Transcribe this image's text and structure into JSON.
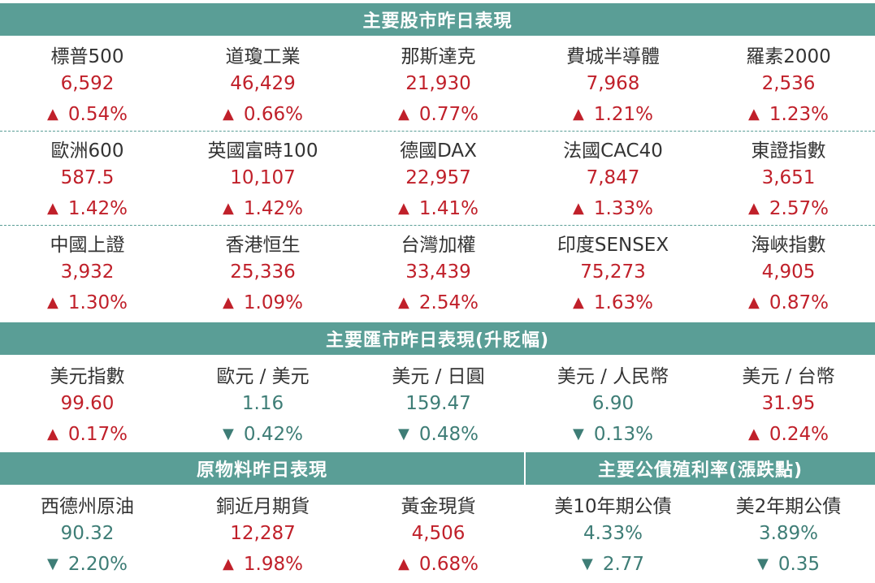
{
  "colors": {
    "banner": "#5a9e96",
    "up": "#c0202a",
    "down": "#3e7d76"
  },
  "stocks": {
    "title": "主要股市昨日表現",
    "rows": [
      [
        {
          "name": "標普500",
          "value": "6,592",
          "change": "0.54%",
          "dir": "up"
        },
        {
          "name": "道瓊工業",
          "value": "46,429",
          "change": "0.66%",
          "dir": "up"
        },
        {
          "name": "那斯達克",
          "value": "21,930",
          "change": "0.77%",
          "dir": "up"
        },
        {
          "name": "費城半導體",
          "value": "7,968",
          "change": "1.21%",
          "dir": "up"
        },
        {
          "name": "羅素2000",
          "value": "2,536",
          "change": "1.23%",
          "dir": "up"
        }
      ],
      [
        {
          "name": "歐洲600",
          "value": "587.5",
          "change": "1.42%",
          "dir": "up"
        },
        {
          "name": "英國富時100",
          "value": "10,107",
          "change": "1.42%",
          "dir": "up"
        },
        {
          "name": "德國DAX",
          "value": "22,957",
          "change": "1.41%",
          "dir": "up"
        },
        {
          "name": "法國CAC40",
          "value": "7,847",
          "change": "1.33%",
          "dir": "up"
        },
        {
          "name": "東證指數",
          "value": "3,651",
          "change": "2.57%",
          "dir": "up"
        }
      ],
      [
        {
          "name": "中國上證",
          "value": "3,932",
          "change": "1.30%",
          "dir": "up"
        },
        {
          "name": "香港恒生",
          "value": "25,336",
          "change": "1.09%",
          "dir": "up"
        },
        {
          "name": "台灣加權",
          "value": "33,439",
          "change": "2.54%",
          "dir": "up"
        },
        {
          "name": "印度SENSEX",
          "value": "75,273",
          "change": "1.63%",
          "dir": "up"
        },
        {
          "name": "海峽指數",
          "value": "4,905",
          "change": "0.87%",
          "dir": "up"
        }
      ]
    ]
  },
  "fx": {
    "title": "主要匯市昨日表現(升貶幅)",
    "items": [
      {
        "name": "美元指數",
        "value": "99.60",
        "change": "0.17%",
        "dir": "up"
      },
      {
        "name": "歐元 / 美元",
        "value": "1.16",
        "change": "0.42%",
        "dir": "down"
      },
      {
        "name": "美元 / 日圓",
        "value": "159.47",
        "change": "0.48%",
        "dir": "down"
      },
      {
        "name": "美元 / 人民幣",
        "value": "6.90",
        "change": "0.13%",
        "dir": "down"
      },
      {
        "name": "美元 / 台幣",
        "value": "31.95",
        "change": "0.24%",
        "dir": "up"
      }
    ]
  },
  "commodities": {
    "title": "原物料昨日表現",
    "items": [
      {
        "name": "西德州原油",
        "value": "90.32",
        "change": "2.20%",
        "dir": "down"
      },
      {
        "name": "銅近月期貨",
        "value": "12,287",
        "change": "1.98%",
        "dir": "up"
      },
      {
        "name": "黃金現貨",
        "value": "4,506",
        "change": "0.68%",
        "dir": "up"
      }
    ]
  },
  "bonds": {
    "title": "主要公債殖利率(漲跌點)",
    "items": [
      {
        "name": "美10年期公債",
        "value": "4.33%",
        "change": "2.77",
        "dir": "down"
      },
      {
        "name": "美2年期公債",
        "value": "3.89%",
        "change": "0.35",
        "dir": "down"
      }
    ]
  },
  "arrows": {
    "up": "▲",
    "down": "▼"
  }
}
